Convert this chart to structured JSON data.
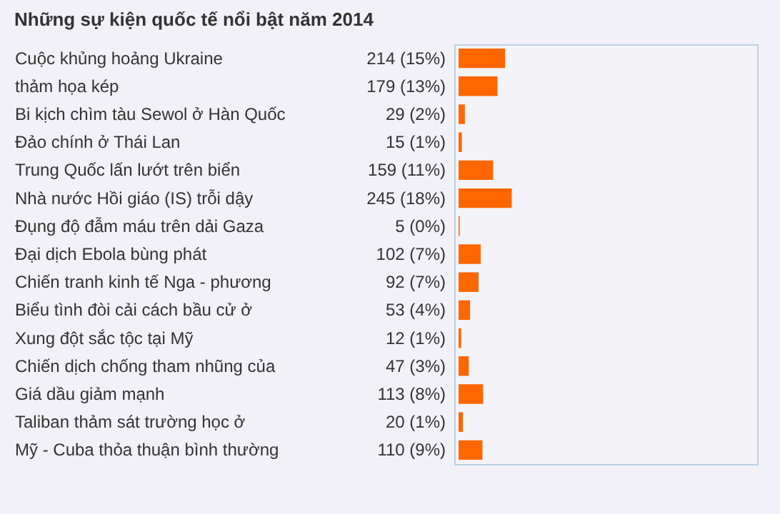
{
  "chart_data": {
    "type": "bar",
    "orientation": "horizontal",
    "title": "Những sự kiện quốc tế nổi bật năm 2014",
    "categories": [
      "Cuộc khủng hoảng Ukraine",
      "thảm họa kép",
      "Bi kịch chìm tàu Sewol ở Hàn Quốc",
      "Đảo chính ở Thái Lan",
      "Trung Quốc lấn lướt trên biển",
      "Nhà nước Hồi giáo (IS) trỗi dậy",
      "Đụng độ đẫm máu trên dải Gaza",
      "Đại dịch Ebola bùng phát",
      "Chiến tranh kinh tế Nga - phương",
      "Biểu tình đòi cải cách bầu cử ở",
      "Xung đột sắc tộc tại Mỹ",
      "Chiến dịch chống tham nhũng của",
      "Giá dầu giảm mạnh",
      "Taliban thảm sát trường học ở",
      "Mỹ - Cuba thỏa thuận bình thường"
    ],
    "values": [
      214,
      179,
      29,
      15,
      159,
      245,
      5,
      102,
      92,
      53,
      12,
      47,
      113,
      20,
      110
    ],
    "value_labels": [
      "214 (15%)",
      "179 (13%)",
      "29 (2%)",
      "15 (1%)",
      "159 (11%)",
      "245 (18%)",
      "5 (0%)",
      "102 (7%)",
      "92 (7%)",
      "53 (4%)",
      "12 (1%)",
      "47 (3%)",
      "113 (8%)",
      "20 (1%)",
      "110 (9%)"
    ],
    "color": "#ff6600"
  }
}
